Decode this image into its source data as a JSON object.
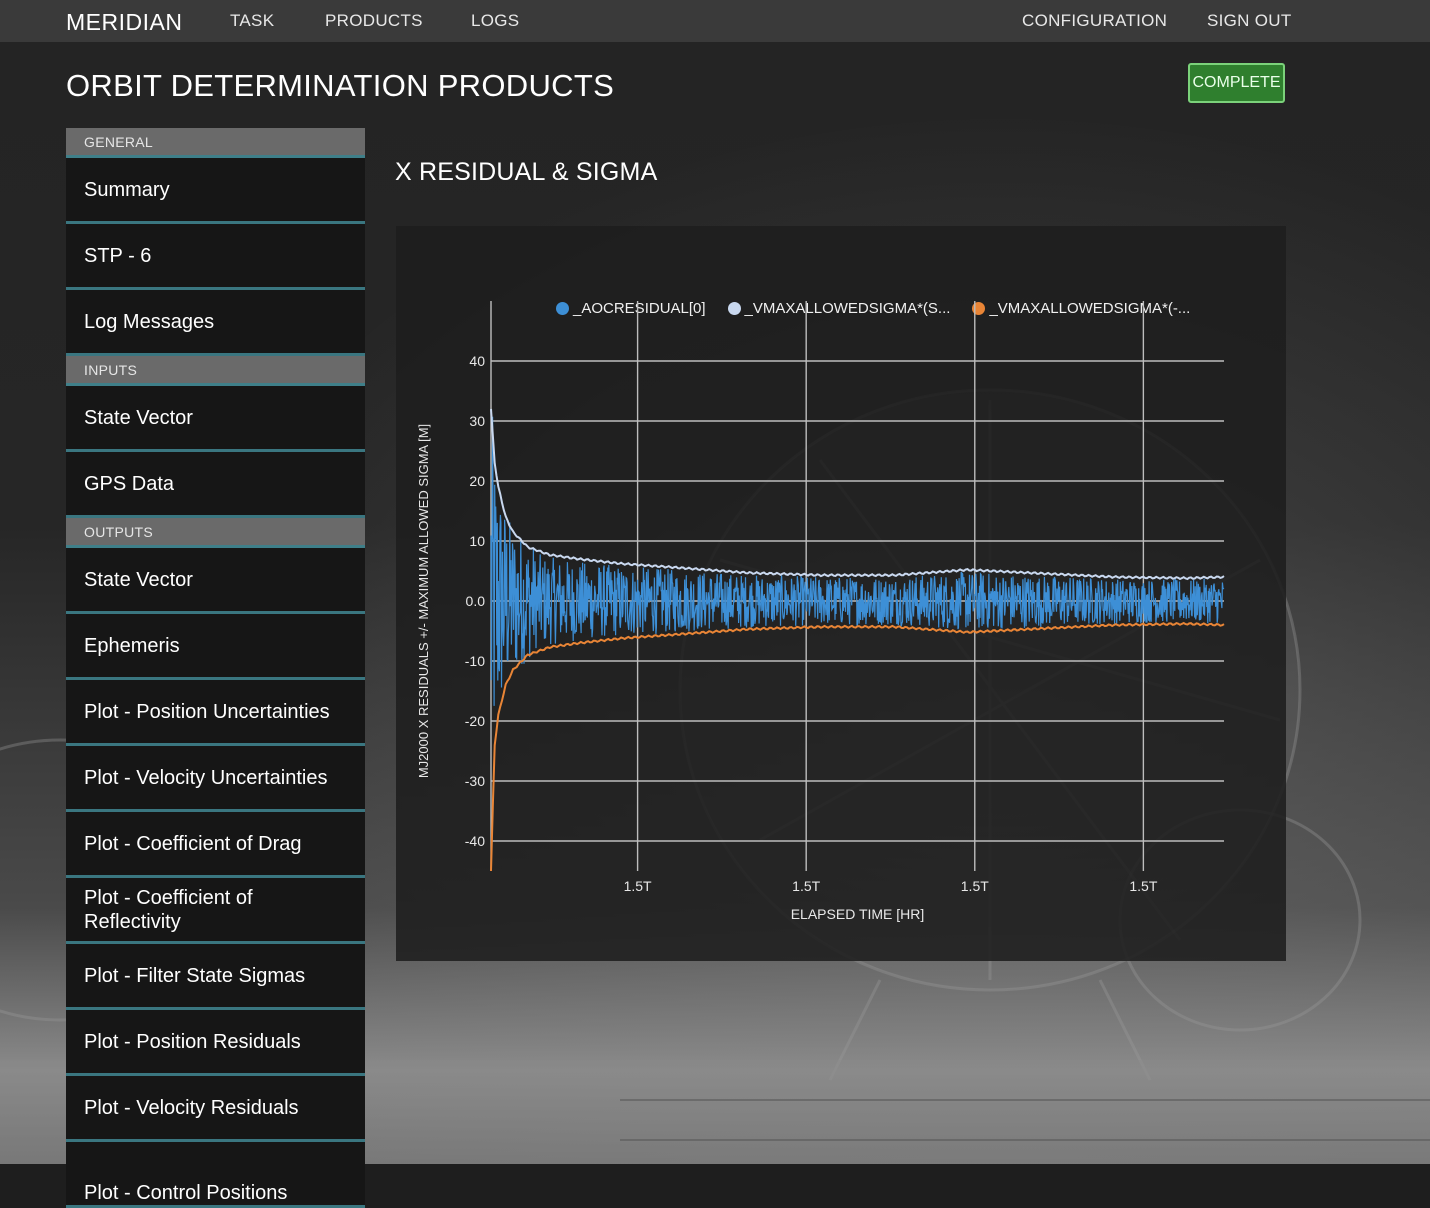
{
  "nav": {
    "brand": "MERIDIAN",
    "links": [
      "TASK",
      "PRODUCTS",
      "LOGS"
    ],
    "right_links": [
      "CONFIGURATION",
      "SIGN OUT"
    ]
  },
  "page": {
    "title": "ORBIT DETERMINATION PRODUCTS",
    "status": "COMPLETE",
    "status_color": "#2f7f2e"
  },
  "sidebar": {
    "general_header": "GENERAL",
    "general_items": [
      "Summary",
      "STP - 6",
      "Log Messages"
    ],
    "inputs_header": "INPUTS",
    "inputs_items": [
      "State Vector",
      "GPS Data"
    ],
    "outputs_header": "OUTPUTS",
    "outputs_items": [
      "State Vector",
      "Ephemeris",
      "Plot - Position Uncertainties",
      "Plot - Velocity Uncertainties",
      "Plot - Coefficient of Drag",
      "Plot - Coefficient of Reflectivity",
      "Plot - Filter State Sigmas",
      "Plot - Position Residuals",
      "Plot - Velocity Residuals",
      "Plot - Control Positions"
    ]
  },
  "chart": {
    "heading": "X RESIDUAL & SIGMA"
  },
  "chart_data": {
    "type": "line",
    "title": "X RESIDUAL & SIGMA",
    "xlabel": "ELAPSED TIME [HR]",
    "ylabel": "MJ2000 X RESIDUALS +/- MAXIMUM ALLOWED SIGMA [M]",
    "ylim": [
      -45,
      45
    ],
    "yticks": [
      "40",
      "30",
      "20",
      "10",
      "0.0",
      "-10",
      "-20",
      "-30",
      "-40"
    ],
    "ytick_values": [
      40,
      30,
      20,
      10,
      0,
      -10,
      -20,
      -30,
      -40
    ],
    "xticks": [
      "1.5T",
      "1.5T",
      "1.5T",
      "1.5T"
    ],
    "xlim": [
      0,
      1
    ],
    "xtick_values": [
      0.2,
      0.43,
      0.66,
      0.89
    ],
    "grid": true,
    "legend_position": "top",
    "series": [
      {
        "name": "_AOCRESIDUAL[0]",
        "color": "#3d8fd6",
        "style": "noisy residual, amplitude decaying from ~15 to ~4"
      },
      {
        "name": "_VMAXALLOWEDSIGMA*(S...",
        "color": "#c9d8ef",
        "x": [
          0,
          0.005,
          0.01,
          0.02,
          0.03,
          0.05,
          0.08,
          0.12,
          0.18,
          0.25,
          0.35,
          0.45,
          0.55,
          0.65,
          0.75,
          0.85,
          0.95,
          1.0
        ],
        "values": [
          32,
          23,
          19,
          14,
          11.5,
          9,
          7.7,
          7,
          6.2,
          5.6,
          4.7,
          4.3,
          4.3,
          5.2,
          4.6,
          4.0,
          3.8,
          4.0
        ]
      },
      {
        "name": "_VMAXALLOWEDSIGMA*(-...",
        "color": "#e98536",
        "x": [
          0,
          0.005,
          0.01,
          0.02,
          0.03,
          0.05,
          0.08,
          0.12,
          0.18,
          0.25,
          0.35,
          0.45,
          0.55,
          0.65,
          0.75,
          0.85,
          0.95,
          1.0
        ],
        "values": [
          -45,
          -24,
          -19,
          -14,
          -11.5,
          -9,
          -7.7,
          -7,
          -6.2,
          -5.6,
          -4.7,
          -4.3,
          -4.3,
          -5.2,
          -4.6,
          -4.0,
          -3.8,
          -4.0
        ]
      }
    ]
  }
}
